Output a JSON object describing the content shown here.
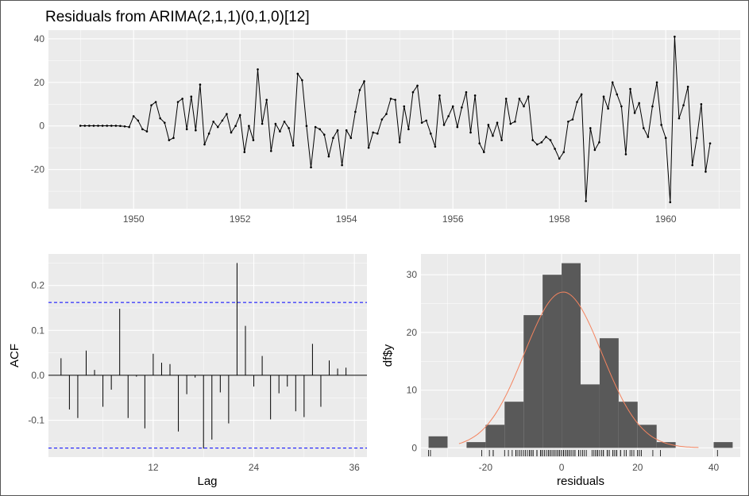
{
  "colors": {
    "panel_bg": "#ebebeb",
    "grid_major": "#ffffff",
    "line": "#000000",
    "acf_bound": "#0000ff",
    "histogram_fill": "#595959",
    "density_curve": "#f4845f"
  },
  "chart_data": [
    {
      "type": "line",
      "title": "Residuals from ARIMA(2,1,1)(0,1,0)[12]",
      "xlabel": "",
      "ylabel": "",
      "x_start": 1949.0,
      "x_step": 0.0833333,
      "xlim": [
        1948.4,
        1961.4
      ],
      "ylim": [
        -38,
        44
      ],
      "x_ticks": [
        1950,
        1952,
        1954,
        1956,
        1958,
        1960
      ],
      "x_tick_labels": [
        "1950",
        "1952",
        "1954",
        "1956",
        "1958",
        "1960"
      ],
      "y_ticks": [
        -20,
        0,
        20,
        40
      ],
      "y_tick_labels": [
        "-20",
        "0",
        "20",
        "40"
      ],
      "grid": true,
      "values": [
        0.1,
        0.1,
        0.1,
        0.1,
        0.1,
        0.1,
        0.1,
        0.1,
        0.1,
        0.0,
        -0.2,
        -0.5,
        4.5,
        2.5,
        -1.5,
        -2.5,
        9.5,
        11.0,
        3.5,
        1.5,
        -6.5,
        -5.5,
        11.0,
        12.5,
        -1.5,
        13.5,
        -2.0,
        19.0,
        -8.5,
        -3.5,
        2.0,
        -0.5,
        2.5,
        5.5,
        -3.0,
        0.0,
        5.0,
        -12.0,
        0.0,
        -6.5,
        26.0,
        1.0,
        12.0,
        -11.5,
        1.0,
        -2.5,
        2.0,
        -1.0,
        -9.0,
        24.0,
        21.0,
        0.0,
        -19.0,
        -0.5,
        -1.5,
        -4.0,
        -14.0,
        -5.5,
        -2.0,
        -18.0,
        -2.0,
        -5.5,
        6.5,
        16.5,
        20.5,
        -10.0,
        -3.0,
        -3.5,
        3.0,
        5.5,
        12.5,
        12.0,
        -7.5,
        9.0,
        -1.5,
        15.5,
        18.5,
        1.5,
        2.5,
        -3.5,
        -9.5,
        14.0,
        0.5,
        4.5,
        9.0,
        -0.5,
        8.5,
        15.5,
        -3.0,
        14.0,
        -8.0,
        -12.0,
        0.5,
        -4.5,
        1.5,
        -6.5,
        12.5,
        1.0,
        2.0,
        12.5,
        9.0,
        13.5,
        -6.5,
        -8.5,
        -7.5,
        -5.0,
        -6.5,
        -10.5,
        -15.0,
        -12.0,
        2.0,
        3.0,
        11.0,
        14.5,
        -34.5,
        -1.0,
        -11.0,
        -7.5,
        13.5,
        8.0,
        20.0,
        14.5,
        9.0,
        -13.0,
        17.0,
        6.0,
        10.5,
        -1.0,
        -5.0,
        9.0,
        20.0,
        0.5,
        -5.5,
        -35.0,
        41.0,
        3.5,
        9.5,
        18.0,
        -18.0,
        -5.5,
        10.0,
        -21.0,
        -8.0
      ]
    },
    {
      "type": "bar",
      "title": "",
      "xlabel": "Lag",
      "ylabel": "ACF",
      "lags": [
        1,
        2,
        3,
        4,
        5,
        6,
        7,
        8,
        9,
        10,
        11,
        12,
        13,
        14,
        15,
        16,
        17,
        18,
        19,
        20,
        21,
        22,
        23,
        24,
        25,
        26,
        27,
        28,
        29,
        30,
        31,
        32,
        33,
        34,
        35,
        36
      ],
      "values": [
        0.038,
        -0.076,
        -0.095,
        0.055,
        0.012,
        -0.07,
        -0.032,
        0.148,
        -0.095,
        -0.003,
        -0.118,
        0.048,
        0.028,
        0.025,
        -0.125,
        -0.042,
        -0.005,
        -0.163,
        -0.143,
        -0.038,
        -0.107,
        0.25,
        0.11,
        -0.025,
        0.043,
        -0.098,
        -0.04,
        -0.025,
        -0.08,
        -0.093,
        0.07,
        -0.07,
        0.033,
        0.015,
        0.017,
        0.0
      ],
      "conf_bound": 0.162,
      "xlim": [
        -0.5,
        37.5
      ],
      "ylim": [
        -0.182,
        0.27
      ],
      "x_ticks": [
        12,
        24,
        36
      ],
      "x_tick_labels": [
        "12",
        "24",
        "36"
      ],
      "y_ticks": [
        -0.1,
        0.0,
        0.1,
        0.2
      ],
      "y_tick_labels": [
        "-0.1",
        "0.0",
        "0.1",
        "0.2"
      ],
      "grid": true
    },
    {
      "type": "bar",
      "title": "",
      "xlabel": "residuals",
      "ylabel": "df$y",
      "bin_width": 5,
      "bin_starts": [
        -35,
        -30,
        -25,
        -20,
        -15,
        -10,
        -5,
        0,
        5,
        10,
        15,
        20,
        25,
        30,
        35,
        40
      ],
      "counts": [
        2,
        0,
        1,
        4,
        8,
        23,
        30,
        32,
        11,
        19,
        8,
        4,
        1,
        0,
        0,
        1
      ],
      "density_peak": 27,
      "density_mean": 0.4,
      "density_sd": 10.2,
      "rug": [
        -34.5,
        -35.0,
        -21.0,
        -19.0,
        -18.0,
        -18.0,
        -15.0,
        -14.0,
        -13.0,
        -12.0,
        -12.0,
        -12.0,
        -11.5,
        -11.0,
        -10.5,
        -10.0,
        -9.5,
        -9.0,
        -8.5,
        -8.5,
        -8.0,
        -8.0,
        -7.5,
        -7.5,
        -6.5,
        -6.5,
        -6.5,
        -6.5,
        -5.5,
        -5.5,
        -5.5,
        -5.0,
        -5.0,
        -4.5,
        -4.0,
        -3.5,
        -3.5,
        -3.0,
        -3.0,
        -2.5,
        -2.5,
        -2.0,
        -2.0,
        -1.5,
        -1.5,
        -1.0,
        -1.0,
        -0.5,
        -0.5,
        0.0,
        0.0,
        0.5,
        0.5,
        1.0,
        1.0,
        1.5,
        1.5,
        2.0,
        2.0,
        2.5,
        2.5,
        3.0,
        3.5,
        3.5,
        4.5,
        4.5,
        5.0,
        5.5,
        6.0,
        6.5,
        8.0,
        8.5,
        9.0,
        9.0,
        9.0,
        9.5,
        9.5,
        10.0,
        10.5,
        11.0,
        11.0,
        12.0,
        12.0,
        12.5,
        12.5,
        12.5,
        13.5,
        13.5,
        14.0,
        14.0,
        14.5,
        14.5,
        15.5,
        15.5,
        16.5,
        17.0,
        18.0,
        18.5,
        19.0,
        20.0,
        20.0,
        20.5,
        21.0,
        24.0,
        26.0,
        41.0
      ],
      "xlim": [
        -37,
        47
      ],
      "ylim": [
        -1.6,
        33.6
      ],
      "x_ticks": [
        -20,
        0,
        20,
        40
      ],
      "x_tick_labels": [
        "-20",
        "0",
        "20",
        "40"
      ],
      "y_ticks": [
        0,
        10,
        20,
        30
      ],
      "y_tick_labels": [
        "0",
        "10",
        "20",
        "30"
      ],
      "grid": true
    }
  ]
}
